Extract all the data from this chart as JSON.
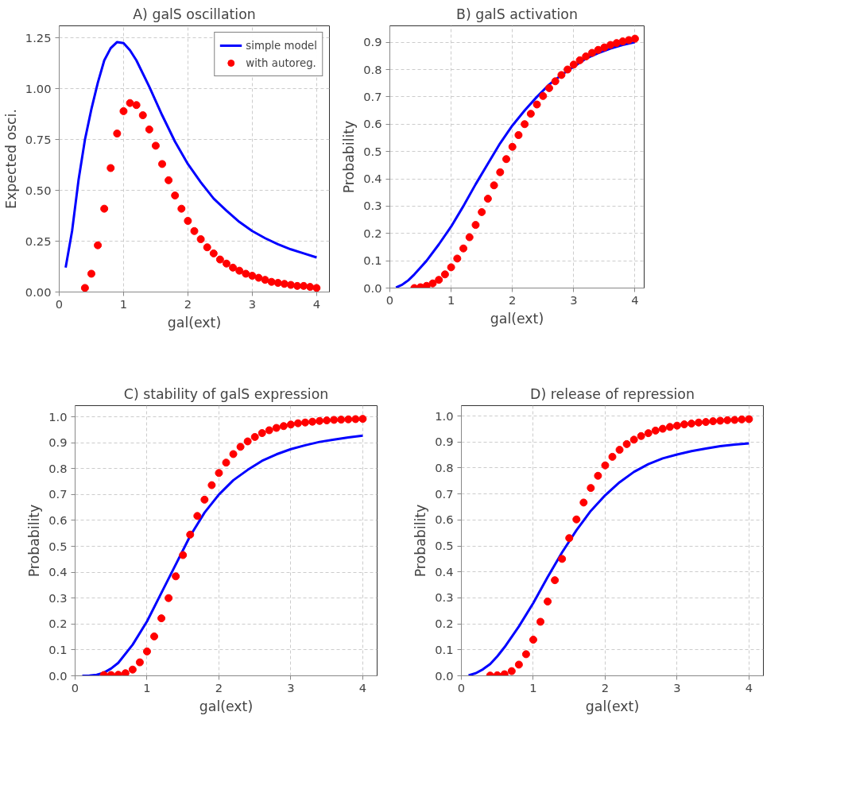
{
  "chart_data": [
    {
      "type": "line",
      "title": "A) galS oscillation",
      "xlabel": "gal(ext)",
      "ylabel": "Expected osci.",
      "xlim": [
        0,
        4.2
      ],
      "ylim": [
        0,
        1.31
      ],
      "xticks": [
        0,
        1,
        2,
        3,
        4
      ],
      "yticks": [
        {
          "value": 0,
          "label": "0.00"
        },
        {
          "value": 0.25,
          "label": "0.25"
        },
        {
          "value": 0.5,
          "label": "0.50"
        },
        {
          "value": 0.75,
          "label": "0.75"
        },
        {
          "value": 1,
          "label": "1.00"
        },
        {
          "value": 1.25,
          "label": "1.25"
        }
      ],
      "grid": true,
      "legend": "top right",
      "series": [
        {
          "name": "simple model",
          "color": "#0000ff",
          "line_style": "solid",
          "x": [
            0.1,
            0.2,
            0.3,
            0.4,
            0.5,
            0.6,
            0.7,
            0.8,
            0.9,
            1.0,
            1.1,
            1.2,
            1.4,
            1.6,
            1.8,
            2.0,
            2.2,
            2.4,
            2.6,
            2.8,
            3.0,
            3.2,
            3.4,
            3.6,
            3.8,
            4.0
          ],
          "values": [
            0.12,
            0.3,
            0.55,
            0.75,
            0.9,
            1.03,
            1.14,
            1.2,
            1.23,
            1.225,
            1.19,
            1.14,
            1.01,
            0.87,
            0.74,
            0.63,
            0.54,
            0.46,
            0.4,
            0.345,
            0.3,
            0.265,
            0.235,
            0.21,
            0.19,
            0.17
          ]
        },
        {
          "name": "with autoreg.",
          "type": "scatter",
          "marker": "circle",
          "color": "#ff0000",
          "x": [
            0.4,
            0.5,
            0.6,
            0.7,
            0.8,
            0.9,
            1.0,
            1.1,
            1.2,
            1.3,
            1.4,
            1.5,
            1.6,
            1.7,
            1.8,
            1.9,
            2.0,
            2.1,
            2.2,
            2.3,
            2.4,
            2.5,
            2.6,
            2.7,
            2.8,
            2.9,
            3.0,
            3.1,
            3.2,
            3.3,
            3.4,
            3.5,
            3.6,
            3.7,
            3.8,
            3.9,
            4.0
          ],
          "values": [
            0.02,
            0.09,
            0.23,
            0.41,
            0.61,
            0.78,
            0.89,
            0.93,
            0.92,
            0.87,
            0.8,
            0.72,
            0.63,
            0.55,
            0.475,
            0.41,
            0.35,
            0.3,
            0.26,
            0.22,
            0.19,
            0.16,
            0.14,
            0.12,
            0.105,
            0.09,
            0.08,
            0.07,
            0.06,
            0.05,
            0.045,
            0.04,
            0.035,
            0.03,
            0.03,
            0.025,
            0.02
          ]
        }
      ]
    },
    {
      "type": "line",
      "title": "B) galS activation",
      "xlabel": "gal(ext)",
      "ylabel": "Probability",
      "xlim": [
        0,
        4.15
      ],
      "ylim": [
        0,
        0.96
      ],
      "xticks": [
        0,
        1,
        2,
        3,
        4
      ],
      "yticks": [
        {
          "value": 0,
          "label": "0.0"
        },
        0.1,
        0.2,
        0.3,
        0.4,
        0.5,
        0.6,
        0.7,
        0.8,
        0.9
      ],
      "grid": true,
      "series": [
        {
          "color": "#0000ff",
          "line_style": "solid",
          "x": [
            0.1,
            0.2,
            0.3,
            0.4,
            0.5,
            0.6,
            0.8,
            1.0,
            1.2,
            1.4,
            1.6,
            1.8,
            2.0,
            2.2,
            2.4,
            2.6,
            2.8,
            3.0,
            3.2,
            3.4,
            3.6,
            3.8,
            4.0
          ],
          "values": [
            0.002,
            0.012,
            0.028,
            0.05,
            0.075,
            0.1,
            0.16,
            0.225,
            0.3,
            0.38,
            0.455,
            0.53,
            0.595,
            0.65,
            0.7,
            0.745,
            0.78,
            0.81,
            0.84,
            0.86,
            0.877,
            0.89,
            0.9
          ]
        },
        {
          "type": "scatter",
          "marker": "circle",
          "color": "#ff0000",
          "x": [
            0.4,
            0.5,
            0.6,
            0.7,
            0.8,
            0.9,
            1.0,
            1.1,
            1.2,
            1.3,
            1.4,
            1.5,
            1.6,
            1.7,
            1.8,
            1.9,
            2.0,
            2.1,
            2.2,
            2.3,
            2.4,
            2.5,
            2.6,
            2.7,
            2.8,
            2.9,
            3.0,
            3.1,
            3.2,
            3.3,
            3.4,
            3.5,
            3.6,
            3.7,
            3.8,
            3.9,
            4.0
          ],
          "values": [
            0.0,
            0.003,
            0.008,
            0.017,
            0.03,
            0.05,
            0.076,
            0.108,
            0.145,
            0.186,
            0.231,
            0.278,
            0.327,
            0.376,
            0.424,
            0.472,
            0.517,
            0.56,
            0.6,
            0.638,
            0.672,
            0.703,
            0.732,
            0.757,
            0.78,
            0.8,
            0.818,
            0.834,
            0.848,
            0.861,
            0.872,
            0.881,
            0.89,
            0.897,
            0.903,
            0.908,
            0.913
          ]
        }
      ]
    },
    {
      "type": "line",
      "title": "C) stability of galS expression",
      "xlabel": "gal(ext)",
      "ylabel": "Probability",
      "xlim": [
        0,
        4.2
      ],
      "ylim": [
        0,
        1.043
      ],
      "xticks": [
        0,
        1,
        2,
        3,
        4
      ],
      "yticks": [
        {
          "value": 0,
          "label": "0.0"
        },
        0.1,
        0.2,
        0.3,
        0.4,
        0.5,
        0.6,
        0.7,
        0.8,
        0.9,
        {
          "value": 1,
          "label": "1.0"
        }
      ],
      "grid": true,
      "series": [
        {
          "color": "#0000ff",
          "line_style": "solid",
          "x": [
            0.1,
            0.2,
            0.3,
            0.4,
            0.5,
            0.6,
            0.8,
            1.0,
            1.2,
            1.4,
            1.6,
            1.8,
            2.0,
            2.2,
            2.4,
            2.6,
            2.8,
            3.0,
            3.2,
            3.4,
            3.6,
            3.8,
            4.0
          ],
          "values": [
            0.0,
            0.001,
            0.004,
            0.012,
            0.028,
            0.05,
            0.12,
            0.21,
            0.32,
            0.43,
            0.54,
            0.63,
            0.7,
            0.755,
            0.795,
            0.83,
            0.855,
            0.875,
            0.89,
            0.903,
            0.912,
            0.92,
            0.927
          ]
        },
        {
          "type": "scatter",
          "marker": "circle",
          "color": "#ff0000",
          "x": [
            0.4,
            0.5,
            0.6,
            0.7,
            0.8,
            0.9,
            1.0,
            1.1,
            1.2,
            1.3,
            1.4,
            1.5,
            1.6,
            1.7,
            1.8,
            1.9,
            2.0,
            2.1,
            2.2,
            2.3,
            2.4,
            2.5,
            2.6,
            2.7,
            2.8,
            2.9,
            3.0,
            3.1,
            3.2,
            3.3,
            3.4,
            3.5,
            3.6,
            3.7,
            3.8,
            3.9,
            4.0
          ],
          "values": [
            0.003,
            0.003,
            0.004,
            0.01,
            0.024,
            0.052,
            0.094,
            0.152,
            0.222,
            0.3,
            0.384,
            0.466,
            0.545,
            0.617,
            0.68,
            0.736,
            0.783,
            0.823,
            0.856,
            0.884,
            0.905,
            0.922,
            0.937,
            0.948,
            0.957,
            0.964,
            0.97,
            0.975,
            0.978,
            0.981,
            0.984,
            0.986,
            0.988,
            0.989,
            0.99,
            0.991,
            0.992
          ]
        }
      ]
    },
    {
      "type": "line",
      "title": "D) release of repression",
      "xlabel": "gal(ext)",
      "ylabel": "Probability",
      "xlim": [
        0,
        4.2
      ],
      "ylim": [
        0,
        1.04
      ],
      "xticks": [
        0,
        1,
        2,
        3,
        4
      ],
      "yticks": [
        {
          "value": 0,
          "label": "0.0"
        },
        0.1,
        0.2,
        0.3,
        0.4,
        0.5,
        0.6,
        0.7,
        0.8,
        0.9,
        {
          "value": 1,
          "label": "1.0"
        }
      ],
      "grid": true,
      "series": [
        {
          "color": "#0000ff",
          "line_style": "solid",
          "x": [
            0.1,
            0.2,
            0.3,
            0.4,
            0.5,
            0.6,
            0.8,
            1.0,
            1.2,
            1.4,
            1.6,
            1.8,
            2.0,
            2.2,
            2.4,
            2.6,
            2.8,
            3.0,
            3.2,
            3.4,
            3.6,
            3.8,
            4.0
          ],
          "values": [
            0.002,
            0.01,
            0.025,
            0.045,
            0.075,
            0.11,
            0.19,
            0.28,
            0.38,
            0.475,
            0.56,
            0.635,
            0.695,
            0.745,
            0.785,
            0.815,
            0.837,
            0.852,
            0.865,
            0.875,
            0.884,
            0.89,
            0.895
          ]
        },
        {
          "type": "scatter",
          "marker": "circle",
          "color": "#ff0000",
          "x": [
            0.4,
            0.5,
            0.6,
            0.7,
            0.8,
            0.9,
            1.0,
            1.1,
            1.2,
            1.3,
            1.4,
            1.5,
            1.6,
            1.7,
            1.8,
            1.9,
            2.0,
            2.1,
            2.2,
            2.3,
            2.4,
            2.5,
            2.6,
            2.7,
            2.8,
            2.9,
            3.0,
            3.1,
            3.2,
            3.3,
            3.4,
            3.5,
            3.6,
            3.7,
            3.8,
            3.9,
            4.0
          ],
          "values": [
            0.001,
            0.002,
            0.006,
            0.018,
            0.043,
            0.083,
            0.139,
            0.208,
            0.286,
            0.368,
            0.45,
            0.53,
            0.602,
            0.667,
            0.723,
            0.77,
            0.81,
            0.843,
            0.87,
            0.892,
            0.909,
            0.923,
            0.934,
            0.944,
            0.951,
            0.958,
            0.963,
            0.968,
            0.971,
            0.975,
            0.977,
            0.98,
            0.982,
            0.984,
            0.985,
            0.987,
            0.988
          ]
        }
      ]
    }
  ]
}
